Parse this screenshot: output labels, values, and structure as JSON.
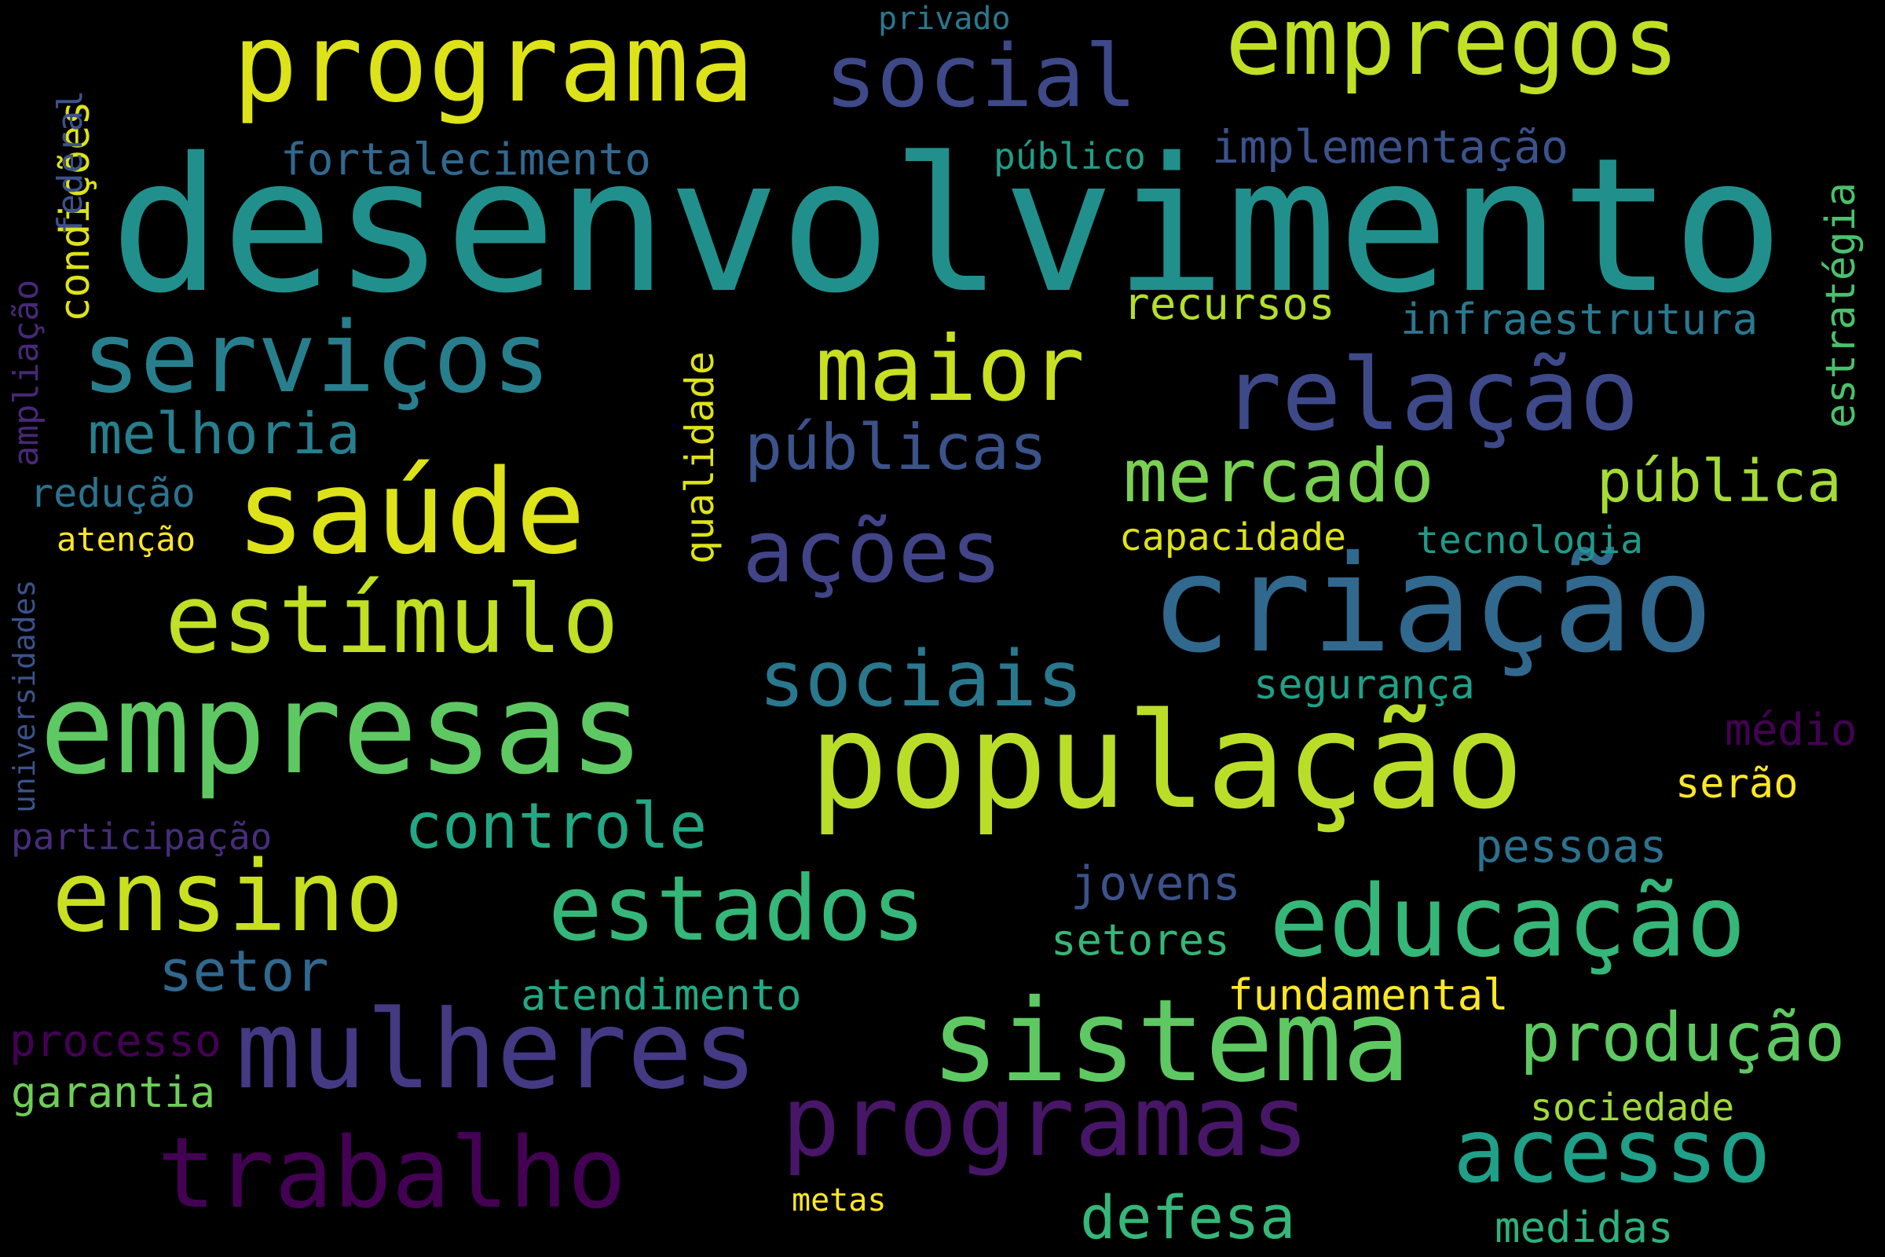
{
  "words": [
    {
      "text": "desenvolvimento",
      "color": "#21908d"
    },
    {
      "text": "população",
      "color": "#bade28"
    },
    {
      "text": "criação",
      "color": "#31688e"
    },
    {
      "text": "sistema",
      "color": "#5ec962"
    },
    {
      "text": "empresas",
      "color": "#5ec962"
    },
    {
      "text": "mulheres",
      "color": "#443983"
    },
    {
      "text": "programa",
      "color": "#dde318"
    },
    {
      "text": "saúde",
      "color": "#dde318"
    },
    {
      "text": "serviços",
      "color": "#277f8e"
    },
    {
      "text": "relação",
      "color": "#3e4989"
    },
    {
      "text": "educação",
      "color": "#35b779"
    },
    {
      "text": "ensino",
      "color": "#c8e020"
    },
    {
      "text": "trabalho",
      "color": "#440154"
    },
    {
      "text": "programas",
      "color": "#481668"
    },
    {
      "text": "estímulo",
      "color": "#c0df25"
    },
    {
      "text": "empregos",
      "color": "#c0df25"
    },
    {
      "text": "social",
      "color": "#3e4989"
    },
    {
      "text": "ações",
      "color": "#414487"
    },
    {
      "text": "estados",
      "color": "#35b779"
    },
    {
      "text": "maior",
      "color": "#c8e020"
    },
    {
      "text": "acesso",
      "color": "#1fa088"
    },
    {
      "text": "sociais",
      "color": "#2a788e"
    },
    {
      "text": "mercado",
      "color": "#7ad151"
    },
    {
      "text": "controle",
      "color": "#22a884"
    },
    {
      "text": "produção",
      "color": "#5ec962"
    },
    {
      "text": "públicas",
      "color": "#3b528b"
    },
    {
      "text": "pública",
      "color": "#a5db36"
    },
    {
      "text": "melhoria",
      "color": "#277f8e"
    },
    {
      "text": "setor",
      "color": "#31688e"
    },
    {
      "text": "defesa",
      "color": "#35b779"
    },
    {
      "text": "fortalecimento",
      "color": "#31688e"
    },
    {
      "text": "implementação",
      "color": "#3b528b"
    },
    {
      "text": "infraestrutura",
      "color": "#2a788e"
    },
    {
      "text": "recursos",
      "color": "#b5de2b"
    },
    {
      "text": "processo",
      "color": "#440154"
    },
    {
      "text": "garantia",
      "color": "#6ece58"
    },
    {
      "text": "fundamental",
      "color": "#fde725"
    },
    {
      "text": "atendimento",
      "color": "#22a884"
    },
    {
      "text": "jovens",
      "color": "#3b528b"
    },
    {
      "text": "setores",
      "color": "#35b779"
    },
    {
      "text": "pessoas",
      "color": "#2c728e"
    },
    {
      "text": "sociedade",
      "color": "#a0da39"
    },
    {
      "text": "medidas",
      "color": "#2db27d"
    },
    {
      "text": "capacidade",
      "color": "#dde318"
    },
    {
      "text": "tecnologia",
      "color": "#1f9a8a"
    },
    {
      "text": "segurança",
      "color": "#1fa188"
    },
    {
      "text": "médio",
      "color": "#440154"
    },
    {
      "text": "serão",
      "color": "#fde725"
    },
    {
      "text": "redução",
      "color": "#2c728e"
    },
    {
      "text": "atenção",
      "color": "#fde725"
    },
    {
      "text": "participação",
      "color": "#472d7b"
    },
    {
      "text": "público",
      "color": "#1f9e89"
    },
    {
      "text": "metas",
      "color": "#fde725"
    },
    {
      "text": "privado",
      "color": "#2a788e"
    },
    {
      "text": "qualidade",
      "color": "#dde318"
    },
    {
      "text": "estratégia",
      "color": "#4ac16d"
    },
    {
      "text": "condições",
      "color": "#dde318"
    },
    {
      "text": "federal",
      "color": "#3b528b"
    },
    {
      "text": "ampliação",
      "color": "#482878"
    },
    {
      "text": "universidades",
      "color": "#3b528b"
    }
  ]
}
